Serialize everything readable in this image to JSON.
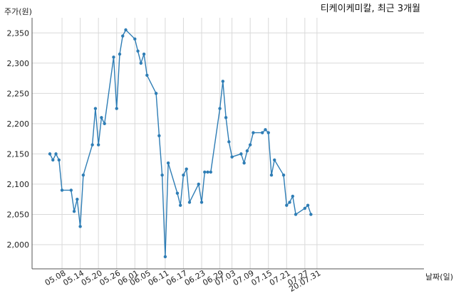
{
  "chart_data": {
    "type": "line",
    "title": "티케이케미칼, 최근 3개월",
    "ylabel": "주가(원)",
    "xlabel": "날짜(일)",
    "ylim": [
      1960,
      2375
    ],
    "yticks": [
      2000,
      2050,
      2100,
      2150,
      2200,
      2250,
      2300,
      2350
    ],
    "ytick_labels": [
      "2,000",
      "2,050",
      "2,100",
      "2,150",
      "2,200",
      "2,250",
      "2,300",
      "2,350"
    ],
    "grid": true,
    "x": [
      "05.04",
      "05.05",
      "05.06",
      "05.07",
      "05.08",
      "05.09",
      "05.10",
      "05.11",
      "05.12",
      "05.13",
      "05.14",
      "05.15",
      "05.16",
      "05.17",
      "05.18",
      "05.19",
      "05.20",
      "05.21",
      "05.22",
      "05.23",
      "05.24",
      "05.25",
      "05.26",
      "05.27",
      "05.28",
      "05.29",
      "05.30",
      "05.31",
      "06.01",
      "06.02",
      "06.03",
      "06.04",
      "06.05",
      "06.06",
      "06.07",
      "06.08",
      "06.09",
      "06.10",
      "06.11",
      "06.12",
      "06.13",
      "06.14",
      "06.15",
      "06.16",
      "06.17",
      "06.18",
      "06.19",
      "06.20",
      "06.21",
      "06.22",
      "06.23",
      "06.24",
      "06.25",
      "06.26",
      "06.27",
      "06.28",
      "06.29",
      "06.30",
      "07.01",
      "07.02",
      "07.03",
      "07.04",
      "07.05",
      "07.06",
      "07.07",
      "07.08",
      "07.09",
      "07.10",
      "07.11",
      "07.12",
      "07.13",
      "07.14",
      "07.15",
      "07.16",
      "07.17",
      "07.18",
      "07.19",
      "07.20",
      "07.21",
      "07.22",
      "07.23",
      "07.24",
      "07.25",
      "07.26",
      "07.27",
      "07.28",
      "07.29",
      "07.30",
      "07.31"
    ],
    "xticks": [
      "05.08",
      "05.14",
      "05.20",
      "05.26",
      "06.01",
      "06.05",
      "06.11",
      "06.17",
      "06.23",
      "06.29",
      "07.03",
      "07.09",
      "07.15",
      "07.21",
      "07.27",
      "20.07.31"
    ],
    "series": [
      {
        "points": [
          [
            "05.04",
            2150
          ],
          [
            "05.05",
            2140
          ],
          [
            "05.06",
            2150
          ],
          [
            "05.07",
            2140
          ],
          [
            "05.08",
            2090
          ],
          [
            "05.11",
            2090
          ],
          [
            "05.12",
            2055
          ],
          [
            "05.13",
            2075
          ],
          [
            "05.14",
            2030
          ],
          [
            "05.15",
            2115
          ],
          [
            "05.18",
            2165
          ],
          [
            "05.19",
            2225
          ],
          [
            "05.20",
            2165
          ],
          [
            "05.21",
            2210
          ],
          [
            "05.22",
            2200
          ],
          [
            "05.25",
            2310
          ],
          [
            "05.26",
            2225
          ],
          [
            "05.27",
            2315
          ],
          [
            "05.28",
            2345
          ],
          [
            "05.29",
            2355
          ],
          [
            "06.01",
            2340
          ],
          [
            "06.02",
            2320
          ],
          [
            "06.03",
            2300
          ],
          [
            "06.04",
            2315
          ],
          [
            "06.05",
            2280
          ],
          [
            "06.08",
            2250
          ],
          [
            "06.09",
            2180
          ],
          [
            "06.10",
            2115
          ],
          [
            "06.11",
            1980
          ],
          [
            "06.12",
            2135
          ],
          [
            "06.15",
            2085
          ],
          [
            "06.16",
            2065
          ],
          [
            "06.17",
            2115
          ],
          [
            "06.18",
            2125
          ],
          [
            "06.19",
            2070
          ],
          [
            "06.22",
            2100
          ],
          [
            "06.23",
            2070
          ],
          [
            "06.24",
            2120
          ],
          [
            "06.25",
            2120
          ],
          [
            "06.26",
            2120
          ],
          [
            "06.29",
            2225
          ],
          [
            "06.30",
            2270
          ],
          [
            "07.01",
            2210
          ],
          [
            "07.02",
            2170
          ],
          [
            "07.03",
            2145
          ],
          [
            "07.06",
            2150
          ],
          [
            "07.07",
            2135
          ],
          [
            "07.08",
            2155
          ],
          [
            "07.09",
            2165
          ],
          [
            "07.10",
            2185
          ],
          [
            "07.13",
            2185
          ],
          [
            "07.14",
            2190
          ],
          [
            "07.15",
            2185
          ],
          [
            "07.16",
            2115
          ],
          [
            "07.17",
            2140
          ],
          [
            "07.20",
            2115
          ],
          [
            "07.21",
            2065
          ],
          [
            "07.22",
            2070
          ],
          [
            "07.23",
            2080
          ],
          [
            "07.24",
            2050
          ],
          [
            "07.27",
            2060
          ],
          [
            "07.28",
            2065
          ],
          [
            "07.29",
            2050
          ]
        ]
      }
    ]
  }
}
